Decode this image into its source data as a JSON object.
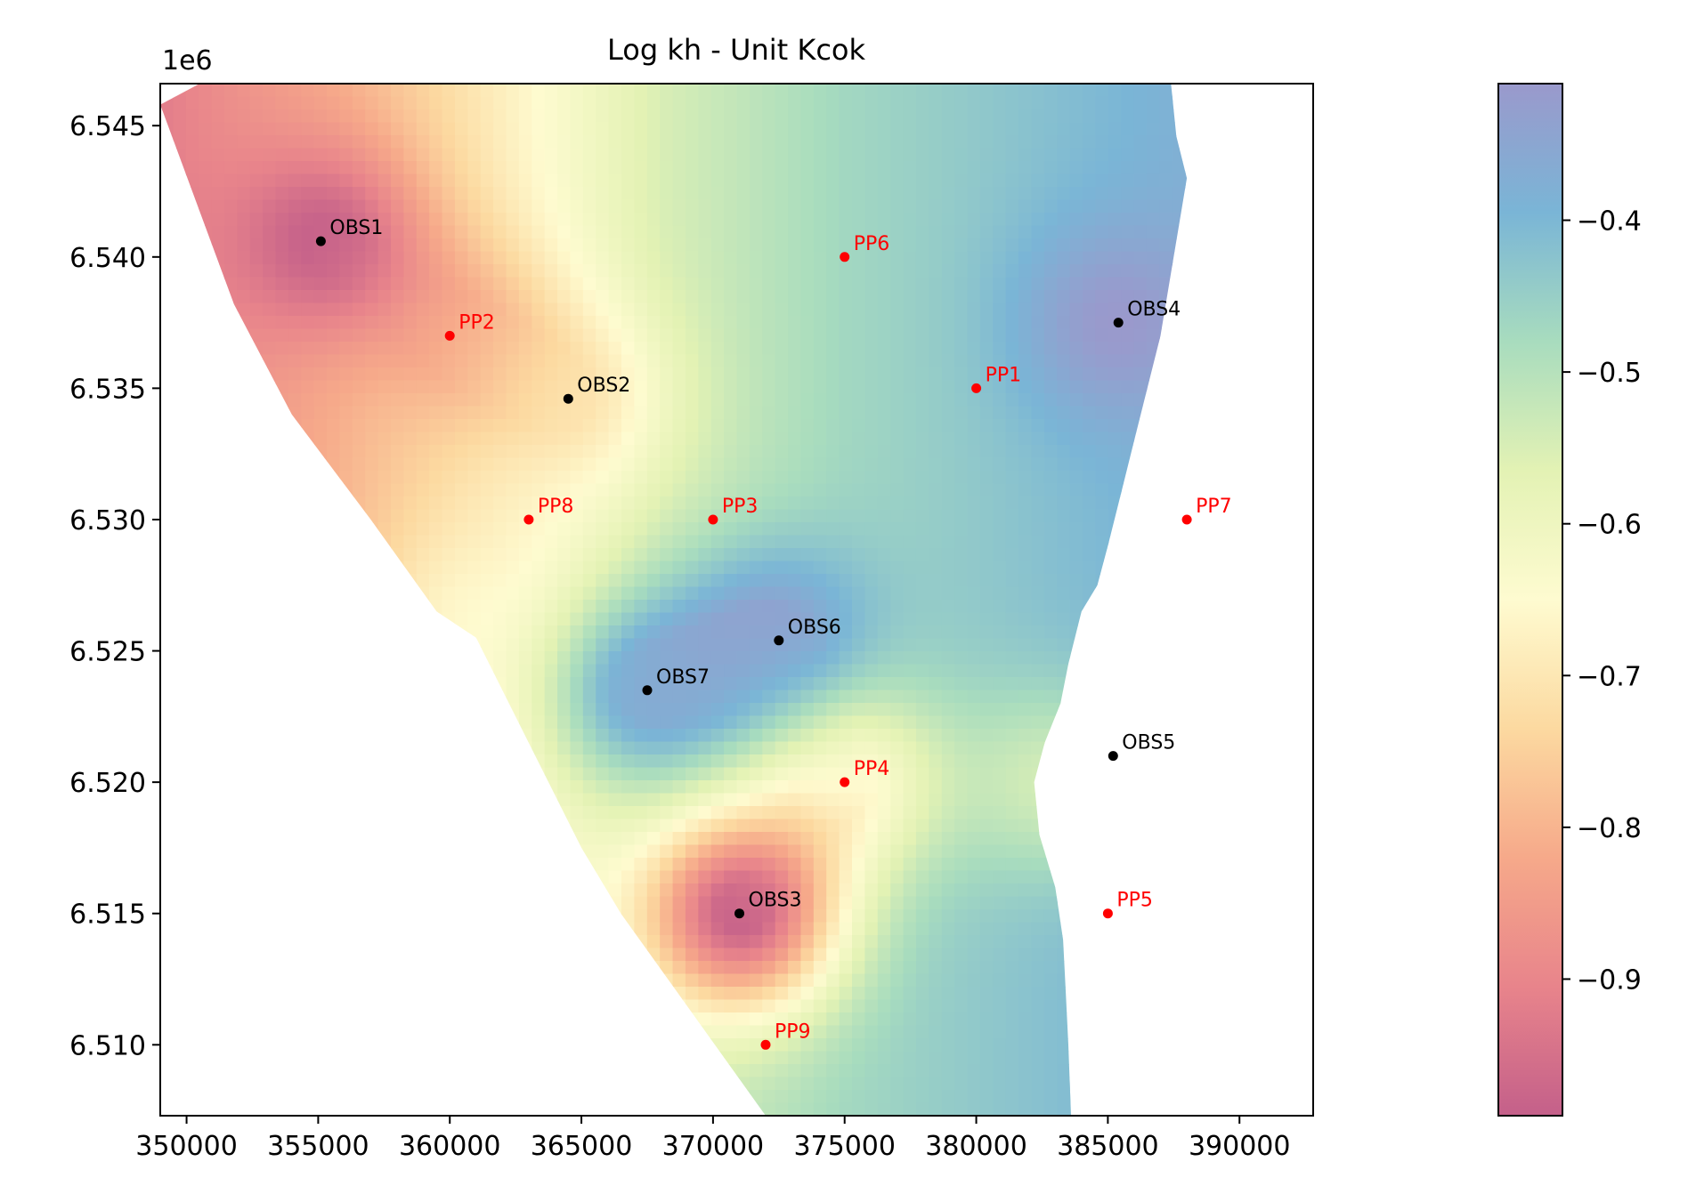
{
  "chart_data": {
    "type": "heatmap",
    "title": "Log kh - Unit Kcok",
    "xlabel": "",
    "ylabel": "",
    "y_offset_label": "1e6",
    "xlim": [
      349000,
      392800
    ],
    "ylim": [
      6507300,
      6546600
    ],
    "x_ticks": [
      350000,
      355000,
      360000,
      365000,
      370000,
      375000,
      380000,
      385000,
      390000
    ],
    "y_ticks": [
      6510000,
      6515000,
      6520000,
      6525000,
      6530000,
      6535000,
      6540000,
      6545000
    ],
    "x_tick_labels": [
      "350000",
      "355000",
      "360000",
      "365000",
      "370000",
      "375000",
      "380000",
      "385000",
      "390000"
    ],
    "y_tick_labels": [
      "6.510",
      "6.515",
      "6.520",
      "6.525",
      "6.530",
      "6.535",
      "6.540",
      "6.545"
    ],
    "colorbar": {
      "range": [
        -0.99,
        -0.31
      ],
      "ticks": [
        -0.9,
        -0.8,
        -0.7,
        -0.6,
        -0.5,
        -0.4
      ],
      "tick_labels": [
        "−0.9",
        "−0.8",
        "−0.7",
        "−0.6",
        "−0.5",
        "−0.4"
      ],
      "colormap": "Spectral",
      "colors": [
        "#c4608a",
        "#e8848b",
        "#f6a98a",
        "#fcd9a0",
        "#fefbd0",
        "#e3f2b4",
        "#a8dcbe",
        "#7ab5d6",
        "#9a99cc"
      ]
    },
    "domain_outline": [
      [
        349000,
        6545800
      ],
      [
        350500,
        6546600
      ],
      [
        387400,
        6546600
      ],
      [
        387600,
        6544600
      ],
      [
        388000,
        6543000
      ],
      [
        387500,
        6540000
      ],
      [
        387000,
        6537000
      ],
      [
        386500,
        6535000
      ],
      [
        386000,
        6533000
      ],
      [
        385500,
        6531000
      ],
      [
        385000,
        6529000
      ],
      [
        384600,
        6527500
      ],
      [
        384000,
        6526500
      ],
      [
        383500,
        6524500
      ],
      [
        383200,
        6523000
      ],
      [
        382600,
        6521500
      ],
      [
        382200,
        6520000
      ],
      [
        382400,
        6518000
      ],
      [
        383000,
        6516000
      ],
      [
        383300,
        6514000
      ],
      [
        383400,
        6512000
      ],
      [
        383500,
        6510000
      ],
      [
        383600,
        6507300
      ],
      [
        372000,
        6507300
      ],
      [
        369000,
        6511500
      ],
      [
        366500,
        6515000
      ],
      [
        365000,
        6517500
      ],
      [
        363000,
        6521500
      ],
      [
        361000,
        6525500
      ],
      [
        359500,
        6526500
      ],
      [
        357000,
        6530000
      ],
      [
        354000,
        6534000
      ],
      [
        351800,
        6538200
      ]
    ],
    "field": {
      "background": -0.63,
      "background_gradient": [
        {
          "x": 349000,
          "value": -0.92
        },
        {
          "x": 356000,
          "value": -0.8
        },
        {
          "x": 362000,
          "value": -0.68
        },
        {
          "x": 368000,
          "value": -0.55
        },
        {
          "x": 375000,
          "value": -0.47
        },
        {
          "x": 381000,
          "value": -0.43
        },
        {
          "x": 388000,
          "value": -0.38
        }
      ],
      "bumps": [
        {
          "x": 355100,
          "y": 6540600,
          "value": -0.99
        },
        {
          "x": 385400,
          "y": 6537500,
          "value": -0.31
        },
        {
          "x": 372500,
          "y": 6525400,
          "value": -0.33
        },
        {
          "x": 367500,
          "y": 6523500,
          "value": -0.36
        },
        {
          "x": 371000,
          "y": 6515000,
          "value": -0.99
        },
        {
          "x": 375000,
          "y": 6520000,
          "value": -0.66
        },
        {
          "x": 383000,
          "y": 6520000,
          "value": -0.54
        },
        {
          "x": 360000,
          "y": 6537000,
          "value": -0.82
        },
        {
          "x": 364500,
          "y": 6534600,
          "value": -0.7
        },
        {
          "x": 361000,
          "y": 6526000,
          "value": -0.66
        }
      ]
    },
    "points": [
      {
        "label": "OBS1",
        "x": 355100,
        "y": 6540600,
        "color": "#000000"
      },
      {
        "label": "OBS2",
        "x": 364500,
        "y": 6534600,
        "color": "#000000"
      },
      {
        "label": "OBS3",
        "x": 371000,
        "y": 6515000,
        "color": "#000000"
      },
      {
        "label": "OBS4",
        "x": 385400,
        "y": 6537500,
        "color": "#000000"
      },
      {
        "label": "OBS5",
        "x": 385200,
        "y": 6521000,
        "color": "#000000"
      },
      {
        "label": "OBS6",
        "x": 372500,
        "y": 6525400,
        "color": "#000000"
      },
      {
        "label": "OBS7",
        "x": 367500,
        "y": 6523500,
        "color": "#000000"
      },
      {
        "label": "PP1",
        "x": 380000,
        "y": 6535000,
        "color": "#ff0000"
      },
      {
        "label": "PP2",
        "x": 360000,
        "y": 6537000,
        "color": "#ff0000"
      },
      {
        "label": "PP3",
        "x": 370000,
        "y": 6530000,
        "color": "#ff0000"
      },
      {
        "label": "PP4",
        "x": 375000,
        "y": 6520000,
        "color": "#ff0000"
      },
      {
        "label": "PP5",
        "x": 385000,
        "y": 6515000,
        "color": "#ff0000"
      },
      {
        "label": "PP6",
        "x": 375000,
        "y": 6540000,
        "color": "#ff0000"
      },
      {
        "label": "PP7",
        "x": 388000,
        "y": 6530000,
        "color": "#ff0000"
      },
      {
        "label": "PP8",
        "x": 363000,
        "y": 6530000,
        "color": "#ff0000"
      },
      {
        "label": "PP9",
        "x": 372000,
        "y": 6510000,
        "color": "#ff0000"
      }
    ],
    "grid": false,
    "legend": "none"
  }
}
